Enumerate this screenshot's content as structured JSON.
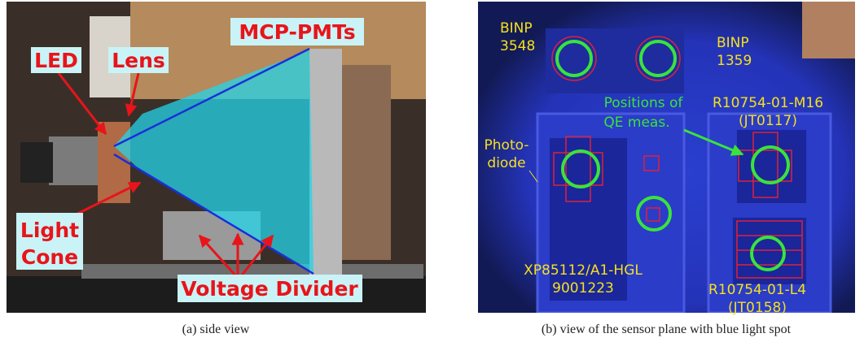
{
  "panels": [
    {
      "labels": [
        {
          "lines": [
            "MCP-PMTs"
          ]
        },
        {
          "lines": [
            "LED"
          ]
        },
        {
          "lines": [
            "Lens"
          ]
        },
        {
          "lines": [
            "Light",
            "Cone"
          ]
        },
        {
          "lines": [
            "Voltage Divider"
          ]
        }
      ],
      "caption": "(a) side view"
    },
    {
      "labels": [
        {
          "lines": [
            "BINP",
            "3548"
          ]
        },
        {
          "lines": [
            "BINP",
            "1359"
          ]
        },
        {
          "lines": [
            "R10754-01-M16",
            "(JT0117)"
          ]
        },
        {
          "lines": [
            "Positions of",
            "QE meas."
          ]
        },
        {
          "lines": [
            "Photo-",
            "diode"
          ]
        },
        {
          "lines": [
            "XP85112/A1-HGL",
            "9001223"
          ]
        },
        {
          "lines": [
            "R10754-01-L4",
            "(JT0158)"
          ]
        }
      ],
      "caption": "(b) view of the sensor plane with blue light spot"
    }
  ]
}
